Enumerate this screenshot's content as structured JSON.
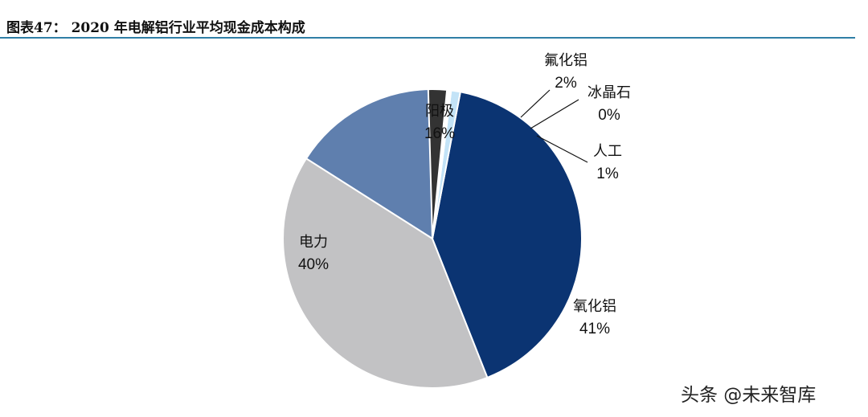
{
  "figure": {
    "title": "图表47： 2020 年电解铝行业平均现金成本构成"
  },
  "watermark": "头条 @未来智库",
  "chart_data": {
    "type": "pie",
    "title": "图表47： 2020 年电解铝行业平均现金成本构成",
    "start_angle_deg": 90,
    "direction": "counterclockwise",
    "slices": [
      {
        "name": "阳极",
        "value_label": "16%",
        "value": 16,
        "color": "#5f7fae"
      },
      {
        "name": "电力",
        "value_label": "40%",
        "value": 40,
        "color": "#c2c2c4"
      },
      {
        "name": "氧化铝",
        "value_label": "41%",
        "value": 41,
        "color": "#0b3472"
      },
      {
        "name": "人工",
        "value_label": "1%",
        "value": 1,
        "color": "#c3e3f7"
      },
      {
        "name": "冰晶石",
        "value_label": "0%",
        "value": 0,
        "color": "#ffffff"
      },
      {
        "name": "氟化铝",
        "value_label": "2%",
        "value": 2,
        "color": "#333333"
      }
    ]
  }
}
